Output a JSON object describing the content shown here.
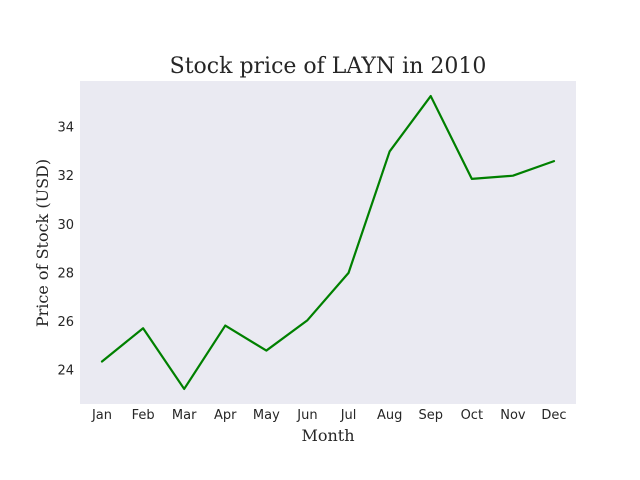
{
  "chart_data": {
    "type": "line",
    "title": "Stock price of LAYN in 2010",
    "xlabel": "Month",
    "ylabel": "Price of Stock (USD)",
    "categories": [
      "Jan",
      "Feb",
      "Mar",
      "Apr",
      "May",
      "Jun",
      "Jul",
      "Aug",
      "Sep",
      "Oct",
      "Nov",
      "Dec"
    ],
    "series": [
      {
        "values": [
          24.35,
          25.72,
          23.22,
          25.83,
          24.8,
          26.05,
          28.0,
          33.0,
          35.28,
          31.87,
          32.0,
          32.6
        ]
      }
    ],
    "yticks": [
      24,
      26,
      28,
      30,
      32,
      34
    ],
    "ylim": [
      22.6,
      35.9
    ],
    "grid": false,
    "legend": "none",
    "colors": {
      "line": "#008000",
      "plot_background": "#eaeaf2"
    }
  }
}
